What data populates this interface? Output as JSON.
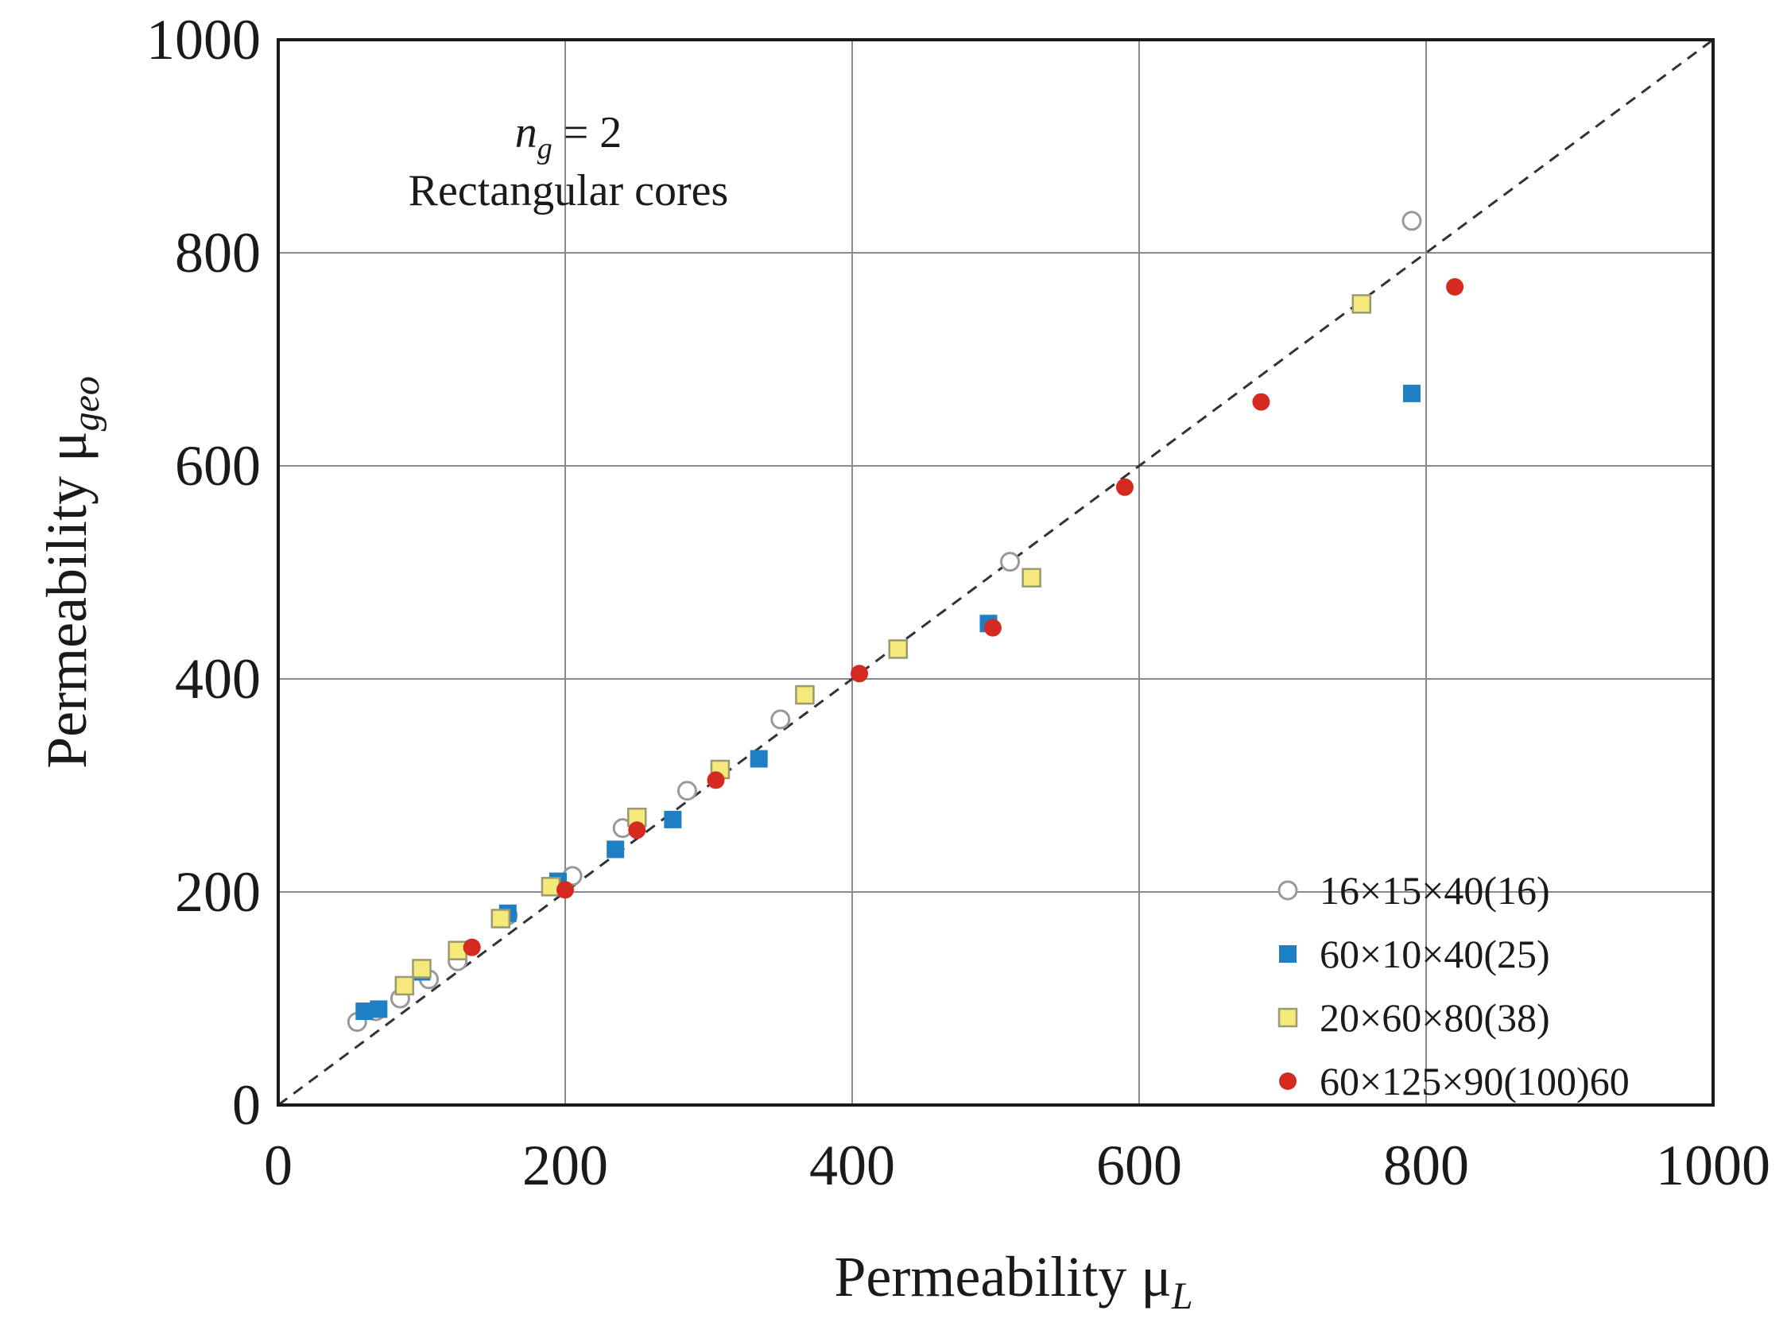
{
  "chart_data": {
    "type": "scatter",
    "xlabel": "Permeability μL",
    "xlabel_parts": {
      "main": "Permeability μ",
      "sub": "L"
    },
    "ylabel": "Permeability μgeo",
    "ylabel_parts": {
      "main": "Permeability μ",
      "sub": "geo"
    },
    "xlim": [
      0,
      1000
    ],
    "ylim": [
      0,
      1000
    ],
    "xticks": [
      0,
      200,
      400,
      600,
      800,
      1000
    ],
    "yticks": [
      0,
      200,
      400,
      600,
      800,
      1000
    ],
    "grid": true,
    "annotation": {
      "line1_var": "n",
      "line1_sub": "g",
      "line1_rest": " = 2",
      "line2": "Rectangular cores"
    },
    "reference_line": {
      "type": "y=x",
      "style": "dashed"
    },
    "legend_position": "bottom-right",
    "series": [
      {
        "name": "16×15×40(16)",
        "marker": "open-circle",
        "color": "#ffffff",
        "edge": "#999999",
        "x": [
          55,
          68,
          85,
          105,
          125,
          160,
          205,
          240,
          285,
          350,
          510,
          790
        ],
        "y": [
          78,
          88,
          100,
          118,
          135,
          178,
          215,
          260,
          295,
          362,
          510,
          830
        ]
      },
      {
        "name": "60×10×40(25)",
        "marker": "square",
        "color": "#1f7fc4",
        "x": [
          60,
          70,
          100,
          160,
          195,
          235,
          275,
          335,
          495,
          790
        ],
        "y": [
          88,
          90,
          125,
          180,
          210,
          240,
          268,
          325,
          452,
          668
        ]
      },
      {
        "name": "20×60×80(38)",
        "marker": "square",
        "color": "#f4e97a",
        "edge": "#9a9a70",
        "x": [
          88,
          100,
          125,
          155,
          190,
          250,
          308,
          367,
          432,
          525,
          755
        ],
        "y": [
          112,
          128,
          145,
          175,
          205,
          270,
          315,
          385,
          428,
          495,
          752
        ]
      },
      {
        "name": "60×125×90(100)60",
        "marker": "circle",
        "color": "#d42a20",
        "x": [
          135,
          200,
          250,
          305,
          405,
          498,
          590,
          685,
          820
        ],
        "y": [
          148,
          202,
          258,
          305,
          405,
          448,
          580,
          660,
          768
        ]
      }
    ]
  }
}
